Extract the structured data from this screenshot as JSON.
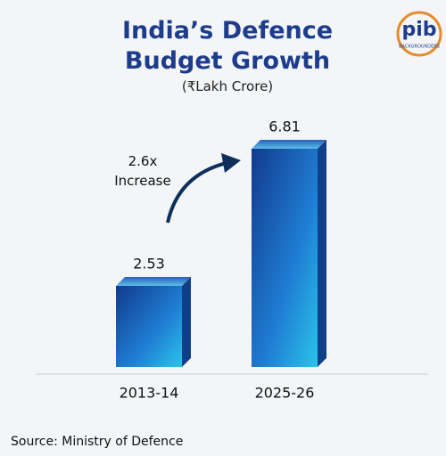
{
  "logo": {
    "name": "pib",
    "tagline": "BACKGROUNDERS"
  },
  "chart_data": {
    "type": "bar",
    "title": "India’s Defence Budget Growth",
    "subtitle": "(₹Lakh Crore)",
    "categories": [
      "2013-14",
      "2025-26"
    ],
    "values": [
      2.53,
      6.81
    ],
    "color": "#1b7fd0",
    "annotation": "2.6x Increase",
    "source": "Source: Ministry of Defence"
  }
}
